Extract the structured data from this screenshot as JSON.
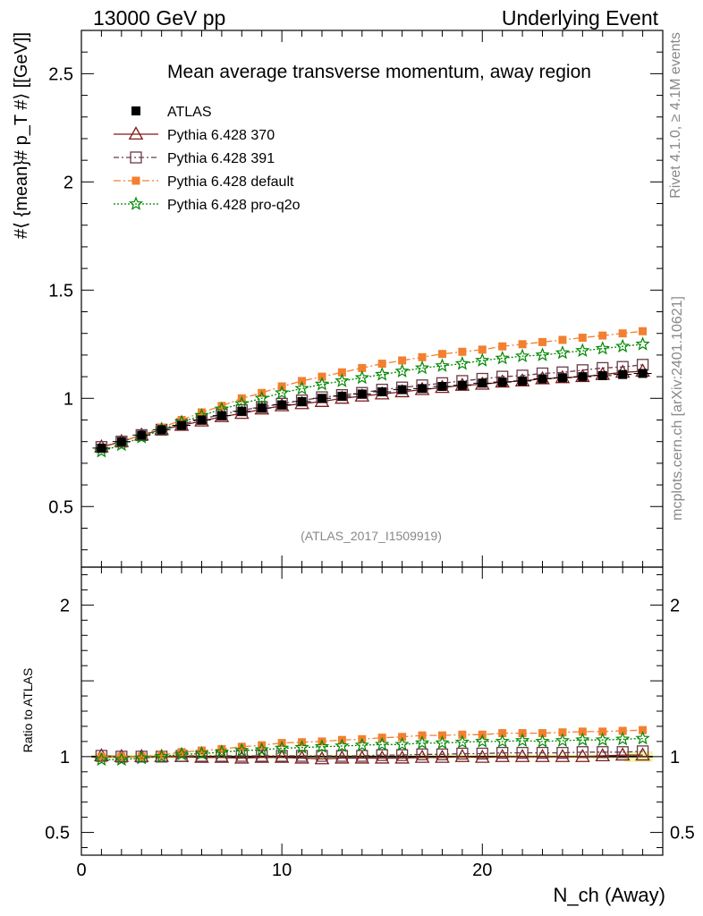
{
  "header": {
    "left": "13000 GeV pp",
    "right": "Underlying Event"
  },
  "side": {
    "rivet": "Rivet 4.1.0, ≥ 4.1M events",
    "mcplots": "mcplots.cern.ch [arXiv:2401.10621]"
  },
  "chart_data": {
    "type": "line",
    "title": "Mean average transverse momentum, away region",
    "analysis_id": "(ATLAS_2017_I1509919)",
    "xlabel": "N_ch (Away)",
    "ylabel": "#⟨ {mean}# p_T #⟩ [[GeV]]",
    "ratio_ylabel": "Ratio to ATLAS",
    "xlim": [
      0,
      29
    ],
    "ylim": [
      0.22,
      2.7
    ],
    "ratio_ylim": [
      0.35,
      2.25
    ],
    "x_ticks": [
      0,
      10,
      20
    ],
    "y_ticks": [
      0.5,
      1,
      1.5,
      2,
      2.5
    ],
    "y_tick_labels": [
      "0.5",
      "1",
      "1.5",
      "2",
      "2.5"
    ],
    "ratio_ticks": [
      0.5,
      1,
      2
    ],
    "ratio_tick_labels": [
      "0.5",
      "1",
      "2"
    ],
    "x": [
      1,
      2,
      3,
      4,
      5,
      6,
      7,
      8,
      9,
      10,
      11,
      12,
      13,
      14,
      15,
      16,
      17,
      18,
      19,
      20,
      21,
      22,
      23,
      24,
      25,
      26,
      27,
      28
    ],
    "series": [
      {
        "name": "ATLAS",
        "color": "#000000",
        "marker": "filled-square",
        "values": [
          0.77,
          0.8,
          0.83,
          0.855,
          0.875,
          0.9,
          0.92,
          0.94,
          0.955,
          0.97,
          0.985,
          1.0,
          1.01,
          1.02,
          1.03,
          1.04,
          1.045,
          1.055,
          1.06,
          1.07,
          1.075,
          1.08,
          1.09,
          1.095,
          1.1,
          1.105,
          1.11,
          1.115
        ]
      },
      {
        "name": "Pythia 6.428 370",
        "color": "#7f1a1a",
        "marker": "open-triangle",
        "dash": "",
        "values": [
          0.775,
          0.8,
          0.83,
          0.855,
          0.875,
          0.895,
          0.915,
          0.93,
          0.95,
          0.965,
          0.975,
          0.985,
          1.0,
          1.01,
          1.02,
          1.03,
          1.04,
          1.05,
          1.06,
          1.065,
          1.075,
          1.08,
          1.09,
          1.095,
          1.1,
          1.11,
          1.12,
          1.125
        ]
      },
      {
        "name": "Pythia 6.428 391",
        "color": "#6a3a4a",
        "marker": "open-square",
        "dash": "6,3,2,3",
        "values": [
          0.775,
          0.8,
          0.83,
          0.855,
          0.88,
          0.905,
          0.925,
          0.945,
          0.96,
          0.975,
          0.99,
          1.005,
          1.015,
          1.025,
          1.04,
          1.05,
          1.06,
          1.07,
          1.08,
          1.09,
          1.1,
          1.105,
          1.115,
          1.12,
          1.13,
          1.14,
          1.145,
          1.155
        ]
      },
      {
        "name": "Pythia 6.428 default",
        "color": "#f28030",
        "marker": "filled-square-small",
        "dash": "8,3,2,3",
        "values": [
          0.77,
          0.8,
          0.83,
          0.865,
          0.9,
          0.935,
          0.965,
          1.0,
          1.025,
          1.055,
          1.08,
          1.1,
          1.12,
          1.14,
          1.16,
          1.175,
          1.19,
          1.205,
          1.215,
          1.225,
          1.24,
          1.25,
          1.26,
          1.27,
          1.28,
          1.29,
          1.3,
          1.31
        ]
      },
      {
        "name": "Pythia 6.428 pro-q2o",
        "color": "#008800",
        "marker": "star",
        "dash": "2,2",
        "values": [
          0.755,
          0.785,
          0.82,
          0.855,
          0.89,
          0.92,
          0.95,
          0.975,
          1.0,
          1.025,
          1.045,
          1.065,
          1.08,
          1.095,
          1.11,
          1.125,
          1.14,
          1.15,
          1.16,
          1.175,
          1.185,
          1.195,
          1.2,
          1.21,
          1.22,
          1.23,
          1.24,
          1.25
        ]
      }
    ],
    "ratio_series": [
      {
        "name": "Pythia 6.428 370",
        "values": [
          1.005,
          1.0,
          1.0,
          1.0,
          1.0,
          0.995,
          0.995,
          0.99,
          0.995,
          0.995,
          0.99,
          0.985,
          0.99,
          0.99,
          0.99,
          0.99,
          0.995,
          0.995,
          1.0,
          0.995,
          1.0,
          1.0,
          1.0,
          1.0,
          1.0,
          1.005,
          1.01,
          1.01
        ]
      },
      {
        "name": "Pythia 6.428 391",
        "values": [
          1.005,
          1.0,
          1.0,
          1.0,
          1.005,
          1.005,
          1.005,
          1.005,
          1.005,
          1.005,
          1.005,
          1.005,
          1.005,
          1.005,
          1.01,
          1.01,
          1.015,
          1.015,
          1.02,
          1.02,
          1.025,
          1.025,
          1.025,
          1.025,
          1.03,
          1.03,
          1.03,
          1.035
        ]
      },
      {
        "name": "Pythia 6.428 default",
        "values": [
          1.0,
          1.0,
          1.0,
          1.01,
          1.03,
          1.04,
          1.05,
          1.065,
          1.075,
          1.09,
          1.095,
          1.1,
          1.11,
          1.115,
          1.125,
          1.13,
          1.14,
          1.14,
          1.145,
          1.145,
          1.155,
          1.155,
          1.155,
          1.16,
          1.165,
          1.165,
          1.17,
          1.175
        ]
      },
      {
        "name": "Pythia 6.428 pro-q2o",
        "values": [
          0.98,
          0.98,
          0.99,
          1.0,
          1.015,
          1.02,
          1.03,
          1.04,
          1.045,
          1.055,
          1.06,
          1.065,
          1.07,
          1.075,
          1.08,
          1.08,
          1.09,
          1.09,
          1.095,
          1.1,
          1.1,
          1.105,
          1.1,
          1.105,
          1.11,
          1.11,
          1.115,
          1.12
        ]
      }
    ]
  }
}
